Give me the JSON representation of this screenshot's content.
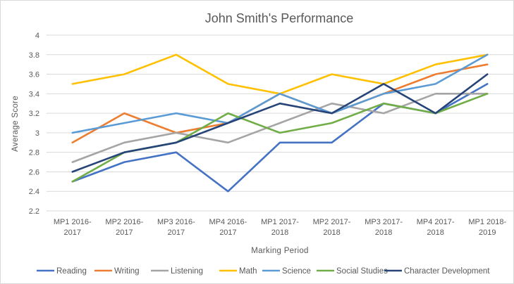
{
  "chart_data": {
    "type": "line",
    "title": "John Smith's Performance",
    "xlabel": "Marking Period",
    "ylabel": "Average Score",
    "ylim": [
      2.2,
      4
    ],
    "yticks": [
      "4",
      "3.8",
      "3.6",
      "3.4",
      "3.2",
      "3",
      "2.8",
      "2.6",
      "2.4",
      "2.2"
    ],
    "grid": true,
    "legend_position": "bottom",
    "categories": [
      [
        "MP1 2016-",
        "2017"
      ],
      [
        "MP2 2016-",
        "2017"
      ],
      [
        "MP3 2016-",
        "2017"
      ],
      [
        "MP4 2016-",
        "2017"
      ],
      [
        "MP1 2017-",
        "2018"
      ],
      [
        "MP2 2017-",
        "2018"
      ],
      [
        "MP3 2017-",
        "2018"
      ],
      [
        "MP4 2017-",
        "2018"
      ],
      [
        "MP1 2018-",
        "2019"
      ]
    ],
    "series": [
      {
        "name": "Reading",
        "color": "#4472c4",
        "values": [
          2.5,
          2.7,
          2.8,
          2.4,
          2.9,
          2.9,
          3.3,
          3.2,
          3.5
        ]
      },
      {
        "name": "Writing",
        "color": "#ed7d31",
        "values": [
          2.9,
          3.2,
          3.0,
          3.1,
          3.4,
          3.2,
          3.4,
          3.6,
          3.7
        ]
      },
      {
        "name": "Listening",
        "color": "#a5a5a5",
        "values": [
          2.7,
          2.9,
          3.0,
          2.9,
          3.1,
          3.3,
          3.2,
          3.4,
          3.4
        ]
      },
      {
        "name": "Math",
        "color": "#ffc000",
        "values": [
          3.5,
          3.6,
          3.8,
          3.5,
          3.4,
          3.6,
          3.5,
          3.7,
          3.8
        ]
      },
      {
        "name": "Science",
        "color": "#5b9bd5",
        "values": [
          3.0,
          3.1,
          3.2,
          3.1,
          3.4,
          3.2,
          3.4,
          3.5,
          3.8
        ]
      },
      {
        "name": "Social Studies",
        "color": "#70ad47",
        "values": [
          2.5,
          2.8,
          2.9,
          3.2,
          3.0,
          3.1,
          3.3,
          3.2,
          3.4
        ]
      },
      {
        "name": "Character Development",
        "color": "#264478",
        "values": [
          2.6,
          2.8,
          2.9,
          3.1,
          3.3,
          3.2,
          3.5,
          3.2,
          3.6
        ]
      }
    ]
  }
}
